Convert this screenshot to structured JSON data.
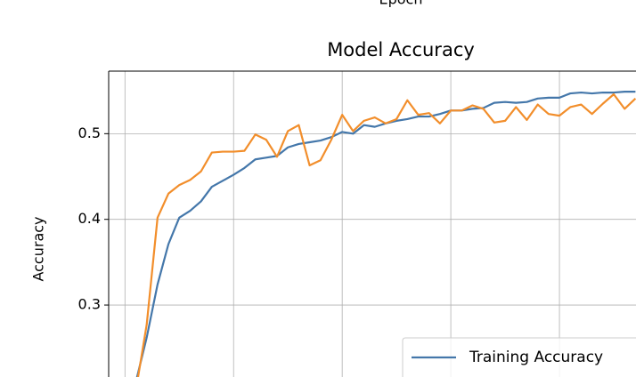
{
  "chart_data": {
    "type": "line",
    "title": "Model Accuracy",
    "xlabel": "Epoch",
    "ylabel": "Accuracy",
    "x": [
      1,
      2,
      3,
      4,
      5,
      6,
      7,
      8,
      9,
      10,
      11,
      12,
      13,
      14,
      15,
      16,
      17,
      18,
      19,
      20,
      21,
      22,
      23,
      24,
      25,
      26,
      27,
      28,
      29,
      30,
      31,
      32,
      33,
      34,
      35,
      36,
      37,
      38,
      39,
      40,
      41,
      42,
      43,
      44,
      45,
      46,
      47
    ],
    "series": [
      {
        "name": "Training Accuracy",
        "color": "#4477aa",
        "values": [
          0.21,
          0.262,
          0.324,
          0.371,
          0.402,
          0.41,
          0.421,
          0.438,
          0.445,
          0.452,
          0.46,
          0.47,
          0.472,
          0.474,
          0.484,
          0.488,
          0.49,
          0.492,
          0.496,
          0.502,
          0.5,
          0.51,
          0.508,
          0.512,
          0.515,
          0.517,
          0.52,
          0.52,
          0.523,
          0.527,
          0.527,
          0.529,
          0.53,
          0.536,
          0.537,
          0.536,
          0.537,
          0.541,
          0.542,
          0.542,
          0.547,
          0.548,
          0.547,
          0.548,
          0.548,
          0.549,
          0.549
        ]
      },
      {
        "color": "#f28e2b",
        "values": [
          0.2,
          0.277,
          0.402,
          0.43,
          0.44,
          0.446,
          0.456,
          0.478,
          0.479,
          0.479,
          0.48,
          0.499,
          0.493,
          0.473,
          0.503,
          0.51,
          0.463,
          0.469,
          0.493,
          0.522,
          0.503,
          0.515,
          0.519,
          0.512,
          0.517,
          0.539,
          0.522,
          0.524,
          0.512,
          0.527,
          0.527,
          0.533,
          0.529,
          0.513,
          0.515,
          0.531,
          0.516,
          0.534,
          0.523,
          0.521,
          0.531,
          0.534,
          0.523,
          0.535,
          0.546,
          0.529,
          0.541
        ]
      }
    ],
    "xlim": [
      -1.5,
      47.05
    ],
    "ylim": [
      0.216,
      0.573
    ],
    "xticks": [
      0,
      10,
      20,
      30,
      40
    ],
    "yticks": [
      0.3,
      0.4,
      0.5
    ],
    "grid": true,
    "legend": "lower right"
  }
}
